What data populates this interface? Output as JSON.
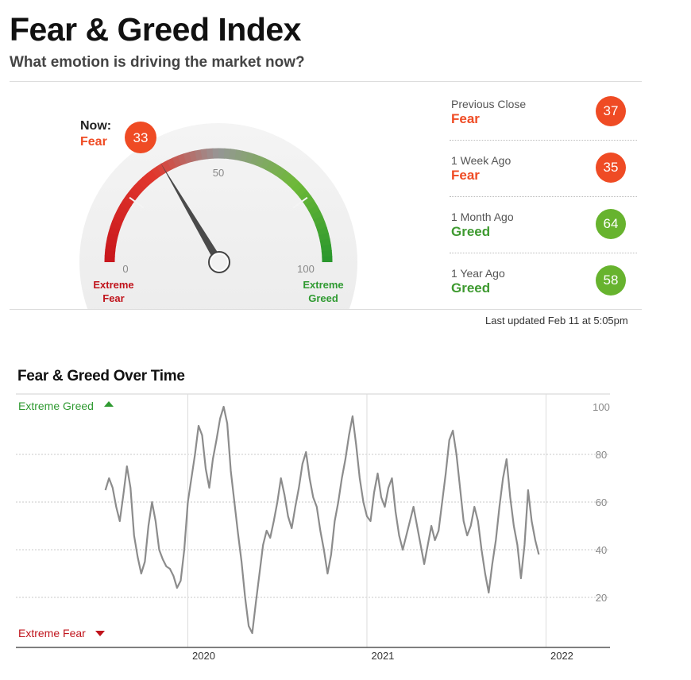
{
  "header": {
    "title": "Fear & Greed Index",
    "subtitle": "What emotion is driving the market now?"
  },
  "gauge": {
    "now_label": "Now:",
    "now_status": "Fear",
    "value": 33,
    "min_label": "0",
    "mid_label": "50",
    "max_label": "100",
    "left_label_line1": "Extreme",
    "left_label_line2": "Fear",
    "right_label_line1": "Extreme",
    "right_label_line2": "Greed"
  },
  "history": [
    {
      "label": "Previous Close",
      "status": "Fear",
      "value": "37",
      "color": "#ef4b24"
    },
    {
      "label": "1 Week Ago",
      "status": "Fear",
      "value": "35",
      "color": "#ef4b24"
    },
    {
      "label": "1 Month Ago",
      "status": "Greed",
      "value": "64",
      "color": "#67b32e"
    },
    {
      "label": "1 Year Ago",
      "status": "Greed",
      "value": "58",
      "color": "#67b32e"
    }
  ],
  "status_colors": {
    "fear": "#ef4b24",
    "greed": "#3e9a30",
    "extreme_fear": "#c0141c",
    "extreme_greed": "#2f9a31"
  },
  "last_updated": "Last updated Feb 11 at 5:05pm",
  "chart_data": {
    "type": "line",
    "title": "Fear & Greed Over Time",
    "y_range": [
      0,
      100
    ],
    "y_ticks": [
      "100",
      "80",
      "60",
      "40",
      "20"
    ],
    "x_ticks": [
      "2020",
      "2021",
      "2022"
    ],
    "top_label": "Extreme Greed",
    "bottom_label": "Extreme Fear",
    "grid": true,
    "series": [
      {
        "color": "#8c8c8c",
        "points": [
          [
            2019.04,
            65
          ],
          [
            2019.06,
            70
          ],
          [
            2019.08,
            66
          ],
          [
            2019.1,
            58
          ],
          [
            2019.12,
            52
          ],
          [
            2019.14,
            63
          ],
          [
            2019.16,
            75
          ],
          [
            2019.18,
            66
          ],
          [
            2019.2,
            46
          ],
          [
            2019.22,
            37
          ],
          [
            2019.24,
            30
          ],
          [
            2019.26,
            35
          ],
          [
            2019.28,
            50
          ],
          [
            2019.3,
            60
          ],
          [
            2019.32,
            52
          ],
          [
            2019.34,
            40
          ],
          [
            2019.36,
            36
          ],
          [
            2019.38,
            33
          ],
          [
            2019.4,
            32
          ],
          [
            2019.42,
            29
          ],
          [
            2019.44,
            24
          ],
          [
            2019.46,
            27
          ],
          [
            2019.48,
            40
          ],
          [
            2019.5,
            60
          ],
          [
            2019.52,
            70
          ],
          [
            2019.54,
            80
          ],
          [
            2019.56,
            92
          ],
          [
            2019.58,
            88
          ],
          [
            2019.6,
            74
          ],
          [
            2019.62,
            66
          ],
          [
            2019.64,
            78
          ],
          [
            2019.66,
            86
          ],
          [
            2019.68,
            95
          ],
          [
            2019.7,
            100
          ],
          [
            2019.72,
            93
          ],
          [
            2019.74,
            73
          ],
          [
            2019.76,
            60
          ],
          [
            2019.78,
            47
          ],
          [
            2019.8,
            35
          ],
          [
            2019.82,
            20
          ],
          [
            2019.84,
            8
          ],
          [
            2019.86,
            5
          ],
          [
            2019.88,
            18
          ],
          [
            2019.9,
            30
          ],
          [
            2019.92,
            42
          ],
          [
            2019.94,
            48
          ],
          [
            2019.96,
            45
          ],
          [
            2019.98,
            52
          ],
          [
            2020.0,
            60
          ],
          [
            2020.02,
            70
          ],
          [
            2020.04,
            63
          ],
          [
            2020.06,
            54
          ],
          [
            2020.08,
            49
          ],
          [
            2020.1,
            58
          ],
          [
            2020.12,
            66
          ],
          [
            2020.14,
            76
          ],
          [
            2020.16,
            81
          ],
          [
            2020.18,
            70
          ],
          [
            2020.2,
            62
          ],
          [
            2020.22,
            58
          ],
          [
            2020.24,
            48
          ],
          [
            2020.26,
            40
          ],
          [
            2020.28,
            30
          ],
          [
            2020.3,
            38
          ],
          [
            2020.32,
            52
          ],
          [
            2020.34,
            60
          ],
          [
            2020.36,
            70
          ],
          [
            2020.38,
            78
          ],
          [
            2020.4,
            88
          ],
          [
            2020.42,
            96
          ],
          [
            2020.44,
            84
          ],
          [
            2020.46,
            70
          ],
          [
            2020.48,
            60
          ],
          [
            2020.5,
            54
          ],
          [
            2020.52,
            52
          ],
          [
            2020.54,
            64
          ],
          [
            2020.56,
            72
          ],
          [
            2020.58,
            62
          ],
          [
            2020.6,
            58
          ],
          [
            2020.62,
            66
          ],
          [
            2020.64,
            70
          ],
          [
            2020.66,
            56
          ],
          [
            2020.68,
            46
          ],
          [
            2020.7,
            40
          ],
          [
            2020.72,
            46
          ],
          [
            2020.74,
            52
          ],
          [
            2020.76,
            58
          ],
          [
            2020.78,
            50
          ],
          [
            2020.8,
            42
          ],
          [
            2020.82,
            34
          ],
          [
            2020.84,
            42
          ],
          [
            2020.86,
            50
          ],
          [
            2020.88,
            44
          ],
          [
            2020.9,
            48
          ],
          [
            2020.92,
            60
          ],
          [
            2020.94,
            72
          ],
          [
            2020.96,
            86
          ],
          [
            2020.98,
            90
          ],
          [
            2021.0,
            80
          ],
          [
            2021.02,
            66
          ],
          [
            2021.04,
            52
          ],
          [
            2021.06,
            46
          ],
          [
            2021.08,
            50
          ],
          [
            2021.1,
            58
          ],
          [
            2021.12,
            52
          ],
          [
            2021.14,
            40
          ],
          [
            2021.16,
            30
          ],
          [
            2021.18,
            22
          ],
          [
            2021.2,
            34
          ],
          [
            2021.22,
            44
          ],
          [
            2021.24,
            58
          ],
          [
            2021.26,
            70
          ],
          [
            2021.28,
            78
          ],
          [
            2021.3,
            62
          ],
          [
            2021.32,
            50
          ],
          [
            2021.34,
            42
          ],
          [
            2021.36,
            28
          ],
          [
            2021.38,
            42
          ],
          [
            2021.4,
            65
          ],
          [
            2021.42,
            52
          ],
          [
            2021.44,
            44
          ],
          [
            2021.46,
            38
          ]
        ]
      }
    ]
  }
}
